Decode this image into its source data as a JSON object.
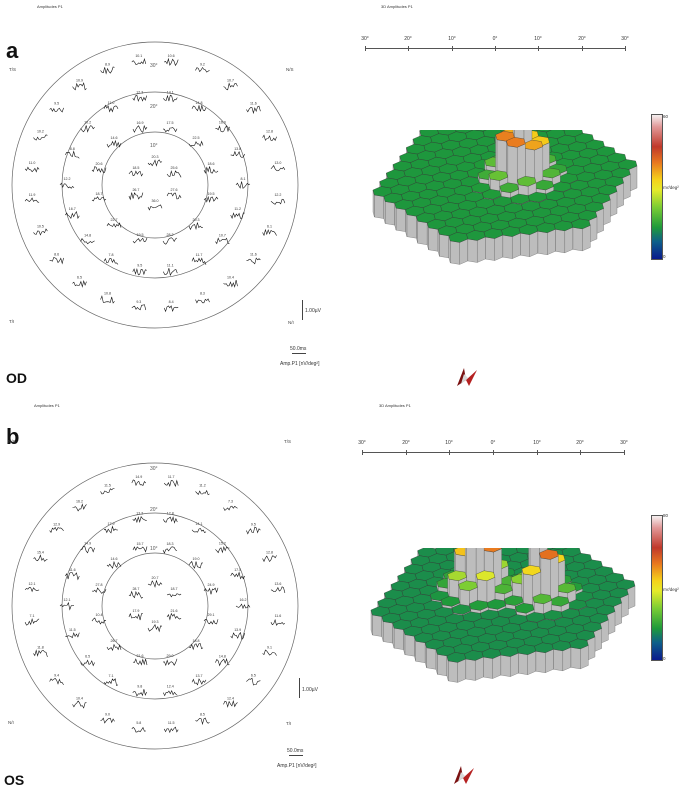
{
  "panels": [
    {
      "letter": "a",
      "eye": "OD",
      "left_title": "Amplitudes P1",
      "right_title": "3D Amplitudes P1",
      "ring_labels": [
        "30°",
        "20°",
        "10°"
      ],
      "quadrants": {
        "top_left": "T/S",
        "top_right": "N/S",
        "bottom_left": "T/I",
        "bottom_right": "N/I"
      },
      "axis_ticks": [
        "30°",
        "20°",
        "10°",
        "0°",
        "10°",
        "20°",
        "30°"
      ],
      "colorbar": {
        "max": "60",
        "min": "0",
        "unit": "nV/deg²"
      },
      "voltage_scale": "1.00µV",
      "time_scale": "50.0ms",
      "amp_label": "Amp.P1 [nV/deg²]",
      "ring1": [
        "20.3",
        "25.6",
        "27.6",
        "36.0",
        "26.7",
        "18.5"
      ],
      "ring2": [
        "17.5",
        "22.5",
        "18.6",
        "19.5",
        "20.3",
        "28.2",
        "19.5",
        "22.7",
        "18.7",
        "20.6",
        "14.6",
        "16.9"
      ],
      "ring3": [
        "14.1",
        "14.8",
        "16.0",
        "13.8",
        "8.1",
        "11.2",
        "10.7",
        "11.7",
        "11.1",
        "9.5",
        "7.8",
        "14.8",
        "16.7",
        "12.2",
        "8.8",
        "10.2",
        "11.0",
        "12.3"
      ],
      "ring4": [
        "10.6",
        "9.2",
        "10.7",
        "11.6",
        "12.8",
        "13.0",
        "12.2",
        "6.1",
        "11.6",
        "10.4",
        "8.3",
        "8.4",
        "9.3",
        "10.8",
        "6.5",
        "8.6",
        "10.5",
        "11.9",
        "11.0",
        "10.2",
        "9.5",
        "10.9",
        "8.9",
        "10.1"
      ]
    },
    {
      "letter": "b",
      "eye": "OS",
      "left_title": "Amplitudes P1",
      "right_title": "3D Amplitudes P1",
      "ring_labels": [
        "30°",
        "20°",
        "10°"
      ],
      "quadrants": {
        "top_left": "N/S",
        "top_right": "T/S",
        "bottom_left": "N/I",
        "bottom_right": "T/I"
      },
      "axis_ticks": [
        "30°",
        "20°",
        "10°",
        "0°",
        "10°",
        "20°",
        "30°"
      ],
      "colorbar": {
        "max": "80",
        "min": "0",
        "unit": "nV/deg²"
      },
      "voltage_scale": "1.00µV",
      "time_scale": "50.0ms",
      "amp_label": "Amp.P1 [nV/deg²]",
      "ring1": [
        "20.7",
        "18.7",
        "21.6",
        "19.3",
        "17.9",
        "28.7"
      ],
      "ring2": [
        "18.3",
        "19.0",
        "24.9",
        "29.1",
        "18.8",
        "29.0",
        "21.6",
        "26.7",
        "10.4",
        "27.8",
        "14.6",
        "15.7"
      ],
      "ring3": [
        "12.8",
        "14.1",
        "15.2",
        "17.5",
        "16.2",
        "13.9",
        "14.8",
        "13.7",
        "12.4",
        "9.8",
        "7.1",
        "6.5",
        "11.5",
        "12.1",
        "11.6",
        "14.9",
        "17.9",
        "13.2"
      ],
      "ring4": [
        "11.7",
        "11.2",
        "7.3",
        "9.5",
        "12.8",
        "13.6",
        "11.6",
        "9.1",
        "6.5",
        "12.4",
        "8.5",
        "11.5",
        "5.8",
        "9.0",
        "10.4",
        "9.4",
        "11.8",
        "7.1",
        "12.1",
        "15.4",
        "12.9",
        "16.2",
        "11.5",
        "14.9"
      ]
    }
  ]
}
